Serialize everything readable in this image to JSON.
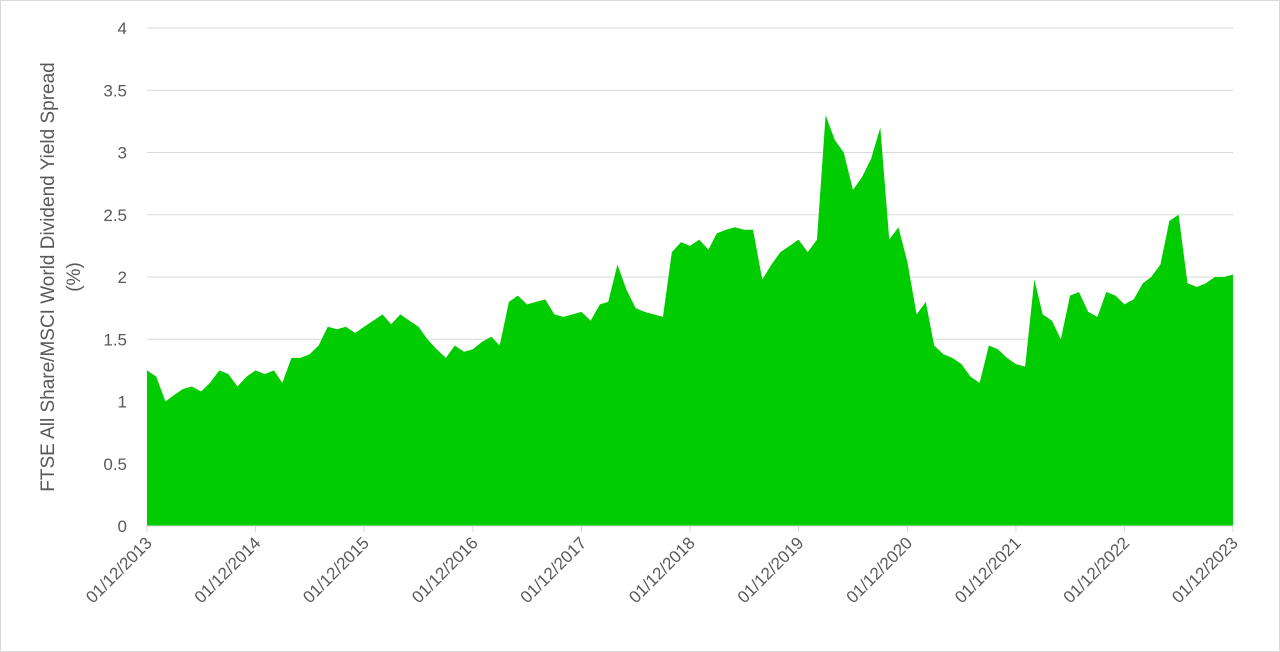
{
  "chart_data": {
    "type": "area",
    "y_label": [
      "FTSE All Share/MSCI World Dividend Yield Spread",
      "(%)"
    ],
    "color": "#00cc00",
    "ylim": [
      0,
      4
    ],
    "yticks": [
      0,
      0.5,
      1,
      1.5,
      2,
      2.5,
      3,
      3.5,
      4
    ],
    "grid": true,
    "xlim": [
      "2013-12-01",
      "2023-12-01"
    ],
    "xticks": [
      {
        "value": "2013-12-01",
        "label": "01/12/2013"
      },
      {
        "value": "2014-12-01",
        "label": "01/12/2014"
      },
      {
        "value": "2015-12-01",
        "label": "01/12/2015"
      },
      {
        "value": "2016-12-01",
        "label": "01/12/2016"
      },
      {
        "value": "2017-12-01",
        "label": "01/12/2017"
      },
      {
        "value": "2018-12-01",
        "label": "01/12/2018"
      },
      {
        "value": "2019-12-01",
        "label": "01/12/2019"
      },
      {
        "value": "2020-12-01",
        "label": "01/12/2020"
      },
      {
        "value": "2021-12-01",
        "label": "01/12/2021"
      },
      {
        "value": "2022-12-01",
        "label": "01/12/2022"
      },
      {
        "value": "2023-12-01",
        "label": "01/12/2023"
      }
    ],
    "x": [
      "2013-12-01",
      "2014-01-01",
      "2014-02-01",
      "2014-03-01",
      "2014-04-01",
      "2014-05-01",
      "2014-06-01",
      "2014-07-01",
      "2014-08-01",
      "2014-09-01",
      "2014-10-01",
      "2014-11-01",
      "2014-12-01",
      "2015-01-01",
      "2015-02-01",
      "2015-03-01",
      "2015-04-01",
      "2015-05-01",
      "2015-06-01",
      "2015-07-01",
      "2015-08-01",
      "2015-09-01",
      "2015-10-01",
      "2015-11-01",
      "2015-12-01",
      "2016-01-01",
      "2016-02-01",
      "2016-03-01",
      "2016-04-01",
      "2016-05-01",
      "2016-06-01",
      "2016-07-01",
      "2016-08-01",
      "2016-09-01",
      "2016-10-01",
      "2016-11-01",
      "2016-12-01",
      "2017-01-01",
      "2017-02-01",
      "2017-03-01",
      "2017-04-01",
      "2017-05-01",
      "2017-06-01",
      "2017-07-01",
      "2017-08-01",
      "2017-09-01",
      "2017-10-01",
      "2017-11-01",
      "2017-12-01",
      "2018-01-01",
      "2018-02-01",
      "2018-03-01",
      "2018-04-01",
      "2018-05-01",
      "2018-06-01",
      "2018-07-01",
      "2018-08-01",
      "2018-09-01",
      "2018-10-01",
      "2018-11-01",
      "2018-12-01",
      "2019-01-01",
      "2019-02-01",
      "2019-03-01",
      "2019-04-01",
      "2019-05-01",
      "2019-06-01",
      "2019-07-01",
      "2019-08-01",
      "2019-09-01",
      "2019-10-01",
      "2019-11-01",
      "2019-12-01",
      "2020-01-01",
      "2020-02-01",
      "2020-03-01",
      "2020-04-01",
      "2020-05-01",
      "2020-06-01",
      "2020-07-01",
      "2020-08-01",
      "2020-09-01",
      "2020-10-01",
      "2020-11-01",
      "2020-12-01",
      "2021-01-01",
      "2021-02-01",
      "2021-03-01",
      "2021-04-01",
      "2021-05-01",
      "2021-06-01",
      "2021-07-01",
      "2021-08-01",
      "2021-09-01",
      "2021-10-01",
      "2021-11-01",
      "2021-12-01",
      "2022-01-01",
      "2022-02-01",
      "2022-03-01",
      "2022-04-01",
      "2022-05-01",
      "2022-06-01",
      "2022-07-01",
      "2022-08-01",
      "2022-09-01",
      "2022-10-01",
      "2022-11-01",
      "2022-12-01",
      "2023-01-01",
      "2023-02-01",
      "2023-03-01",
      "2023-04-01",
      "2023-05-01",
      "2023-06-01",
      "2023-07-01",
      "2023-08-01",
      "2023-09-01",
      "2023-10-01",
      "2023-11-01",
      "2023-12-01"
    ],
    "values": [
      1.25,
      1.2,
      1.0,
      1.05,
      1.1,
      1.12,
      1.08,
      1.15,
      1.25,
      1.22,
      1.12,
      1.2,
      1.25,
      1.22,
      1.25,
      1.15,
      1.35,
      1.35,
      1.38,
      1.45,
      1.6,
      1.58,
      1.6,
      1.55,
      1.6,
      1.65,
      1.7,
      1.62,
      1.7,
      1.65,
      1.6,
      1.5,
      1.42,
      1.35,
      1.45,
      1.4,
      1.42,
      1.48,
      1.52,
      1.45,
      1.8,
      1.85,
      1.78,
      1.8,
      1.82,
      1.7,
      1.68,
      1.7,
      1.72,
      1.65,
      1.78,
      1.8,
      2.1,
      1.9,
      1.75,
      1.72,
      1.7,
      1.68,
      2.2,
      2.28,
      2.25,
      2.3,
      2.22,
      2.35,
      2.38,
      2.4,
      2.38,
      2.38,
      1.98,
      2.1,
      2.2,
      2.25,
      2.3,
      2.2,
      2.3,
      3.3,
      3.1,
      3.0,
      2.7,
      2.8,
      2.95,
      3.2,
      2.3,
      2.4,
      2.12,
      1.7,
      1.8,
      1.45,
      1.38,
      1.35,
      1.3,
      1.2,
      1.15,
      1.45,
      1.42,
      1.35,
      1.3,
      1.28,
      1.98,
      1.7,
      1.65,
      1.5,
      1.85,
      1.88,
      1.72,
      1.68,
      1.88,
      1.85,
      1.78,
      1.82,
      1.95,
      2.0,
      2.1,
      2.45,
      2.5,
      1.95,
      1.92,
      1.95,
      2.0,
      2.0,
      2.02
    ]
  }
}
